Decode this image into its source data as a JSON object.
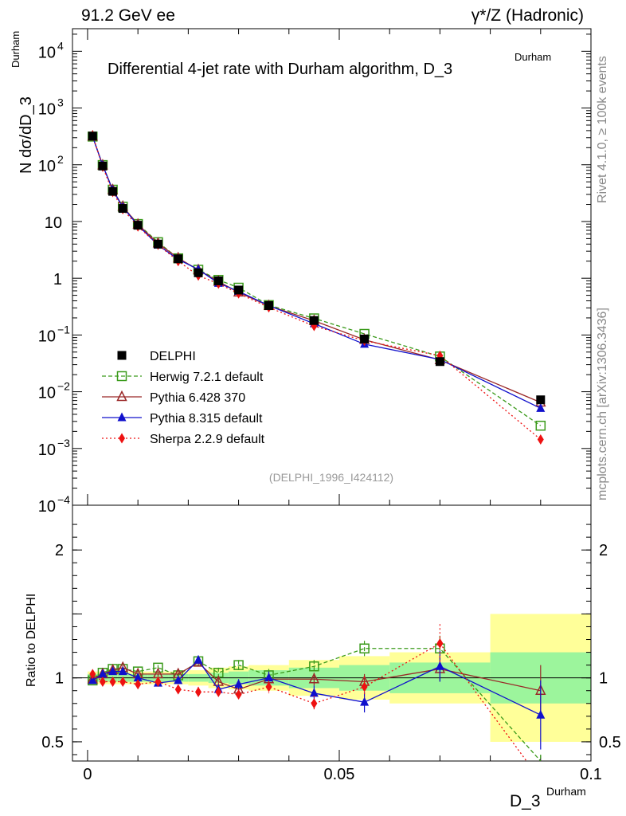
{
  "header": {
    "left": "91.2 GeV ee",
    "right": "γ*/Z (Hadronic)"
  },
  "side": {
    "rivet": "Rivet 4.1.0, ≥ 100k events",
    "mcplots": "mcplots.cern.ch [arXiv:1306.3436]"
  },
  "chart_data": {
    "type": "scatter",
    "title": "Differential 4-jet rate with Durham algorithm, D_3",
    "title_sup": "Durham",
    "ylabel_prefix": "N  dσ/dD_3",
    "ylabel_sup": "Durham",
    "xlabel": "D_3",
    "xlabel_sup": "Durham",
    "ratio_ylabel": "Ratio to DELPHI",
    "reference": "(DELPHI_1996_I424112)",
    "xlim": [
      -0.003,
      0.1
    ],
    "ylim": [
      0.0001,
      25000
    ],
    "ratio_ylim": [
      0.35,
      2.35
    ],
    "x_ticks": [
      {
        "v": 0,
        "label": "0"
      },
      {
        "v": 0.05,
        "label": "0.05"
      },
      {
        "v": 0.1,
        "label": "0.1"
      }
    ],
    "y_ticks": [
      {
        "v": 10000,
        "base": "10",
        "exp": "4"
      },
      {
        "v": 1000,
        "base": "10",
        "exp": "3"
      },
      {
        "v": 100,
        "base": "10",
        "exp": "2"
      },
      {
        "v": 10,
        "base": "10",
        "exp": ""
      },
      {
        "v": 1,
        "base": "1",
        "exp": ""
      },
      {
        "v": 0.1,
        "base": "10",
        "exp": "−1"
      },
      {
        "v": 0.01,
        "base": "10",
        "exp": "−2"
      },
      {
        "v": 0.001,
        "base": "10",
        "exp": "−3"
      },
      {
        "v": 0.0001,
        "base": "10",
        "exp": "−4"
      }
    ],
    "ratio_ticks": [
      {
        "v": 2,
        "label": "2"
      },
      {
        "v": 1,
        "label": "1"
      },
      {
        "v": 0.5,
        "label": "0.5"
      }
    ],
    "x": [
      0.001,
      0.003,
      0.005,
      0.007,
      0.01,
      0.014,
      0.018,
      0.022,
      0.026,
      0.03,
      0.036,
      0.045,
      0.055,
      0.07,
      0.09
    ],
    "bin_edges": [
      0,
      0.002,
      0.004,
      0.006,
      0.008,
      0.012,
      0.016,
      0.02,
      0.024,
      0.028,
      0.032,
      0.04,
      0.05,
      0.06,
      0.08,
      0.1
    ],
    "band_inner": [
      0.03,
      0.03,
      0.03,
      0.03,
      0.03,
      0.03,
      0.03,
      0.03,
      0.04,
      0.05,
      0.06,
      0.08,
      0.1,
      0.12,
      0.2
    ],
    "band_outer": [
      0.05,
      0.05,
      0.05,
      0.05,
      0.05,
      0.05,
      0.05,
      0.06,
      0.08,
      0.09,
      0.1,
      0.14,
      0.17,
      0.2,
      0.5
    ],
    "data_series": {
      "name": "DELPHI",
      "color": "#000000",
      "y": [
        320,
        95,
        34,
        17,
        8.6,
        4.0,
        2.2,
        1.25,
        0.9,
        0.62,
        0.33,
        0.18,
        0.085,
        0.034,
        0.0072
      ]
    },
    "series": [
      {
        "name": "Herwig 7.2.1 default",
        "color": "#3a9a1a",
        "marker": "square-open",
        "dash": "5,3",
        "ratio": [
          0.98,
          1.04,
          1.07,
          1.07,
          1.05,
          1.08,
          1.02,
          1.13,
          1.04,
          1.1,
          1.02,
          1.09,
          1.23,
          1.23,
          0.35
        ],
        "err": [
          0.02,
          0.02,
          0.02,
          0.02,
          0.02,
          0.02,
          0.02,
          0.03,
          0.04,
          0.04,
          0.05,
          0.05,
          0.06,
          0.1,
          0.05
        ]
      },
      {
        "name": "Pythia 6.428 370",
        "color": "#9a2828",
        "marker": "triangle-open",
        "dash": "",
        "ratio": [
          0.99,
          1.03,
          1.06,
          1.08,
          1.03,
          1.03,
          1.03,
          1.12,
          0.97,
          0.91,
          0.99,
          0.99,
          0.97,
          1.07,
          0.9
        ],
        "err": [
          0.02,
          0.02,
          0.02,
          0.02,
          0.02,
          0.02,
          0.02,
          0.03,
          0.04,
          0.04,
          0.05,
          0.05,
          0.06,
          0.1,
          0.2
        ]
      },
      {
        "name": "Pythia 8.315 default",
        "color": "#1010cc",
        "marker": "triangle",
        "dash": "",
        "ratio": [
          0.98,
          1.03,
          1.05,
          1.05,
          1.0,
          0.96,
          0.98,
          1.14,
          0.91,
          0.95,
          1.0,
          0.88,
          0.81,
          1.09,
          0.71
        ],
        "err": [
          0.02,
          0.02,
          0.02,
          0.02,
          0.02,
          0.02,
          0.02,
          0.03,
          0.04,
          0.04,
          0.05,
          0.06,
          0.08,
          0.12,
          0.27
        ]
      },
      {
        "name": "Sherpa 2.2.9 default",
        "color": "#ee1111",
        "marker": "diamond",
        "dash": "2,3",
        "ratio": [
          1.03,
          0.97,
          0.97,
          0.97,
          0.95,
          0.97,
          0.91,
          0.89,
          0.89,
          0.87,
          0.93,
          0.8,
          0.93,
          1.27,
          0.2
        ],
        "err": [
          0.02,
          0.02,
          0.02,
          0.02,
          0.02,
          0.02,
          0.03,
          0.04,
          0.04,
          0.04,
          0.05,
          0.06,
          0.08,
          0.15,
          0.1
        ]
      }
    ]
  }
}
